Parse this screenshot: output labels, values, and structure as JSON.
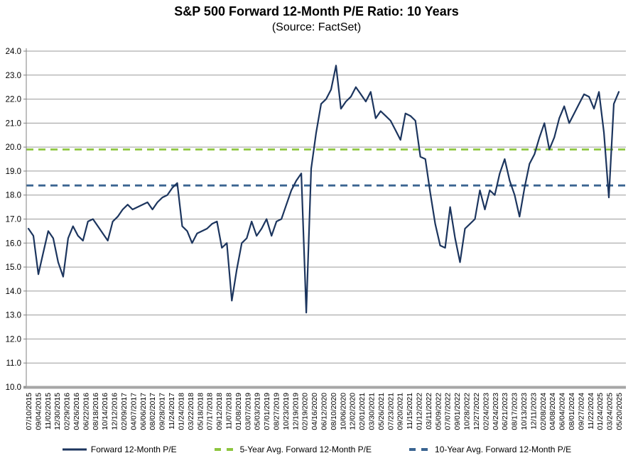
{
  "title": "S&P 500 Forward 12-Month P/E Ratio: 10 Years",
  "subtitle": "(Source: FactSet)",
  "legend": [
    {
      "label": "Forward 12-Month P/E",
      "style": "solid",
      "color": "#1C355E"
    },
    {
      "label": "5-Year Avg. Forward 12-Month P/E",
      "style": "dashed",
      "color": "#8DC63F"
    },
    {
      "label": "10-Year Avg. Forward 12-Month P/E",
      "style": "dashed",
      "color": "#3A6491"
    }
  ],
  "colors": {
    "series_line": "#1C355E",
    "avg_5yr_line": "#8DC63F",
    "avg_10yr_line": "#3A6491",
    "gridline": "#9A9A9A",
    "axis_line": "#808080",
    "bottom_axis_bar": "#A6A6A6"
  },
  "chart_data": {
    "type": "line",
    "title": "S&P 500 Forward 12-Month P/E Ratio: 10 Years",
    "subtitle": "(Source: FactSet)",
    "xlabel": "",
    "ylabel": "",
    "ylim": [
      10.0,
      24.0
    ],
    "ytick_step": 1.0,
    "yticks": [
      "24.0",
      "23.0",
      "22.0",
      "21.0",
      "20.0",
      "19.0",
      "18.0",
      "17.0",
      "16.0",
      "15.0",
      "14.0",
      "13.0",
      "12.0",
      "11.0",
      "10.0"
    ],
    "grid": true,
    "legend_position": "bottom",
    "xticklabel_rotation": 90,
    "categories": [
      "07/10/2015",
      "09/04/2015",
      "11/02/2015",
      "12/30/2015",
      "02/29/2016",
      "04/26/2016",
      "06/22/2016",
      "08/18/2016",
      "10/14/2016",
      "12/12/2016",
      "02/09/2017",
      "04/07/2017",
      "06/06/2017",
      "08/02/2017",
      "09/28/2017",
      "11/24/2017",
      "01/24/2018",
      "03/22/2018",
      "05/18/2018",
      "07/17/2018",
      "09/12/2018",
      "11/07/2018",
      "01/08/2019",
      "03/07/2019",
      "05/03/2019",
      "07/01/2019",
      "08/27/2019",
      "10/23/2019",
      "12/19/2019",
      "02/19/2020",
      "04/16/2020",
      "06/12/2020",
      "08/10/2020",
      "10/06/2020",
      "12/02/2020",
      "02/01/2021",
      "03/30/2021",
      "05/26/2021",
      "07/23/2021",
      "09/20/2021",
      "11/15/2021",
      "01/12/2022",
      "03/11/2022",
      "05/09/2022",
      "07/07/2022",
      "09/01/2022",
      "10/28/2022",
      "12/27/2022",
      "02/24/2023",
      "04/24/2023",
      "06/21/2023",
      "08/17/2023",
      "10/13/2023",
      "12/11/2023",
      "02/08/2024",
      "04/08/2024",
      "06/04/2024",
      "08/01/2024",
      "09/27/2024",
      "11/22/2024",
      "01/24/2025",
      "03/24/2025",
      "05/20/2025"
    ],
    "series": [
      {
        "name": "Forward 12-Month P/E",
        "color": "#1C355E",
        "style": "solid",
        "values": [
          16.6,
          16.3,
          14.7,
          15.6,
          16.5,
          16.2,
          15.2,
          14.6,
          16.2,
          16.7,
          16.3,
          16.1,
          16.9,
          17.0,
          16.7,
          16.4,
          16.1,
          16.9,
          17.1,
          17.4,
          17.6,
          17.4,
          17.5,
          17.6,
          17.7,
          17.4,
          17.7,
          17.9,
          18.0,
          18.3,
          18.5,
          16.7,
          16.5,
          16.0,
          16.4,
          16.5,
          16.6,
          16.8,
          16.9,
          15.8,
          16.0,
          13.6,
          14.9,
          16.0,
          16.2,
          16.9,
          16.3,
          16.6,
          17.0,
          16.3,
          16.9,
          17.0,
          17.6,
          18.2,
          18.6,
          18.9,
          13.1,
          19.1,
          20.6,
          21.8,
          22.0,
          22.4,
          23.4,
          21.6,
          21.9,
          22.1,
          22.5,
          22.2,
          21.9,
          22.3,
          21.2,
          21.5,
          21.3,
          21.1,
          20.7,
          20.3,
          21.4,
          21.3,
          21.1,
          19.6,
          19.5,
          18.1,
          16.8,
          15.9,
          15.8,
          17.5,
          16.2,
          15.2,
          16.6,
          16.8,
          17.0,
          18.2,
          17.4,
          18.2,
          18.0,
          18.9,
          19.5,
          18.6,
          18.0,
          17.1,
          18.3,
          19.3,
          19.7,
          20.4,
          21.0,
          19.9,
          20.4,
          21.2,
          21.7,
          21.0,
          21.4,
          21.8,
          22.2,
          22.1,
          21.6,
          22.3,
          20.6,
          17.9,
          21.8,
          22.3
        ]
      },
      {
        "name": "5-Year Avg. Forward 12-Month P/E",
        "color": "#8DC63F",
        "style": "dashed",
        "constant": 19.9
      },
      {
        "name": "10-Year Avg. Forward 12-Month P/E",
        "color": "#3A6491",
        "style": "dashed",
        "constant": 18.4
      }
    ]
  }
}
